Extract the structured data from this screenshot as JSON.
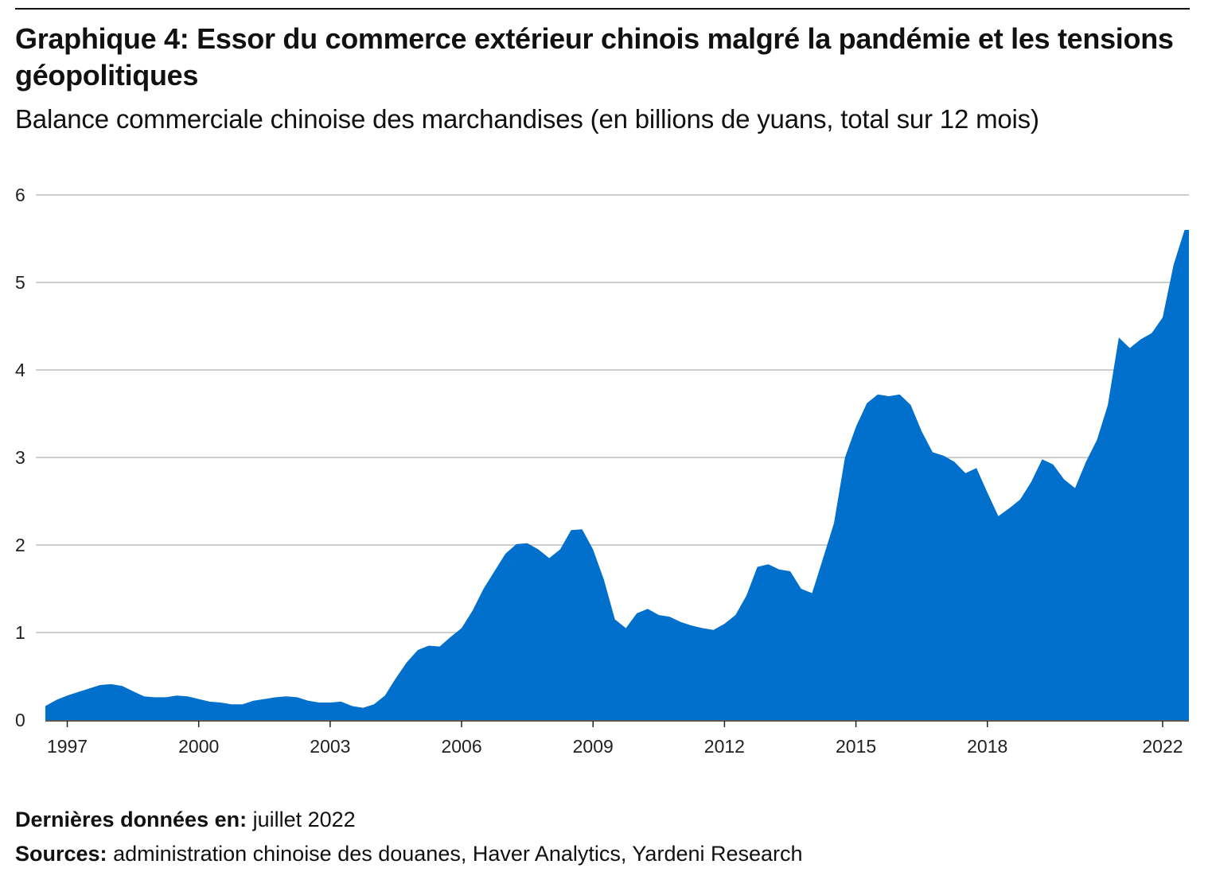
{
  "header": {
    "title": "Graphique 4: Essor du commerce extérieur chinois malgré la pandémie et les tensions géopolitiques",
    "subtitle": "Balance commerciale chinoise des marchandises (en billions de yuans, total sur 12 mois)"
  },
  "footer": {
    "latest_label": "Dernières données en:",
    "latest_value": "juillet 2022",
    "sources_label": "Sources:",
    "sources_value": "administration chinoise des douanes, Haver Analytics, Yardeni Research"
  },
  "colors": {
    "area": "#0070cc",
    "grid": "#b0b0b0",
    "axis": "#222222"
  },
  "chart_data": {
    "type": "area",
    "ylim": [
      0,
      6
    ],
    "yticks": [
      "0",
      "1",
      "2",
      "3",
      "4",
      "5",
      "6"
    ],
    "xticks": [
      "1997",
      "2000",
      "2003",
      "2006",
      "2009",
      "2012",
      "2015",
      "2018",
      "2022"
    ],
    "xlim": [
      1996.5,
      2022.6
    ],
    "grid": true,
    "legend": "none",
    "series": [
      {
        "x": [
          1996.5,
          1996.75,
          1997.0,
          1997.25,
          1997.5,
          1997.75,
          1998.0,
          1998.25,
          1998.5,
          1998.75,
          1999.0,
          1999.25,
          1999.5,
          1999.75,
          2000.0,
          2000.25,
          2000.5,
          2000.75,
          2001.0,
          2001.25,
          2001.5,
          2001.75,
          2002.0,
          2002.25,
          2002.5,
          2002.75,
          2003.0,
          2003.25,
          2003.5,
          2003.75,
          2004.0,
          2004.25,
          2004.5,
          2004.75,
          2005.0,
          2005.25,
          2005.5,
          2005.75,
          2006.0,
          2006.25,
          2006.5,
          2006.75,
          2007.0,
          2007.25,
          2007.5,
          2007.75,
          2008.0,
          2008.25,
          2008.5,
          2008.75,
          2009.0,
          2009.25,
          2009.5,
          2009.75,
          2010.0,
          2010.25,
          2010.5,
          2010.75,
          2011.0,
          2011.25,
          2011.5,
          2011.75,
          2012.0,
          2012.25,
          2012.5,
          2012.75,
          2013.0,
          2013.25,
          2013.5,
          2013.75,
          2014.0,
          2014.25,
          2014.5,
          2014.75,
          2015.0,
          2015.25,
          2015.5,
          2015.75,
          2016.0,
          2016.25,
          2016.5,
          2016.75,
          2017.0,
          2017.25,
          2017.5,
          2017.75,
          2018.0,
          2018.25,
          2018.5,
          2018.75,
          2019.0,
          2019.25,
          2019.5,
          2019.75,
          2020.0,
          2020.25,
          2020.5,
          2020.75,
          2021.0,
          2021.25,
          2021.5,
          2021.75,
          2022.0,
          2022.25,
          2022.5,
          2022.6
        ],
        "y": [
          0.16,
          0.23,
          0.28,
          0.32,
          0.36,
          0.4,
          0.41,
          0.39,
          0.33,
          0.27,
          0.26,
          0.26,
          0.28,
          0.27,
          0.24,
          0.21,
          0.2,
          0.18,
          0.18,
          0.22,
          0.24,
          0.26,
          0.27,
          0.26,
          0.22,
          0.2,
          0.2,
          0.21,
          0.16,
          0.14,
          0.18,
          0.28,
          0.48,
          0.66,
          0.8,
          0.85,
          0.84,
          0.95,
          1.05,
          1.25,
          1.5,
          1.7,
          1.9,
          2.01,
          2.02,
          1.95,
          1.85,
          1.95,
          2.17,
          2.18,
          1.95,
          1.6,
          1.15,
          1.05,
          1.22,
          1.27,
          1.2,
          1.18,
          1.12,
          1.08,
          1.05,
          1.03,
          1.1,
          1.2,
          1.42,
          1.75,
          1.78,
          1.72,
          1.7,
          1.5,
          1.45,
          1.85,
          2.25,
          3.0,
          3.35,
          3.62,
          3.72,
          3.7,
          3.72,
          3.6,
          3.3,
          3.06,
          3.02,
          2.95,
          2.82,
          2.88,
          2.6,
          2.33,
          2.42,
          2.52,
          2.72,
          2.98,
          2.92,
          2.75,
          2.65,
          2.95,
          3.2,
          3.6,
          4.37,
          4.25,
          4.35,
          4.42,
          4.6,
          5.2,
          5.6,
          5.6
        ]
      }
    ]
  }
}
